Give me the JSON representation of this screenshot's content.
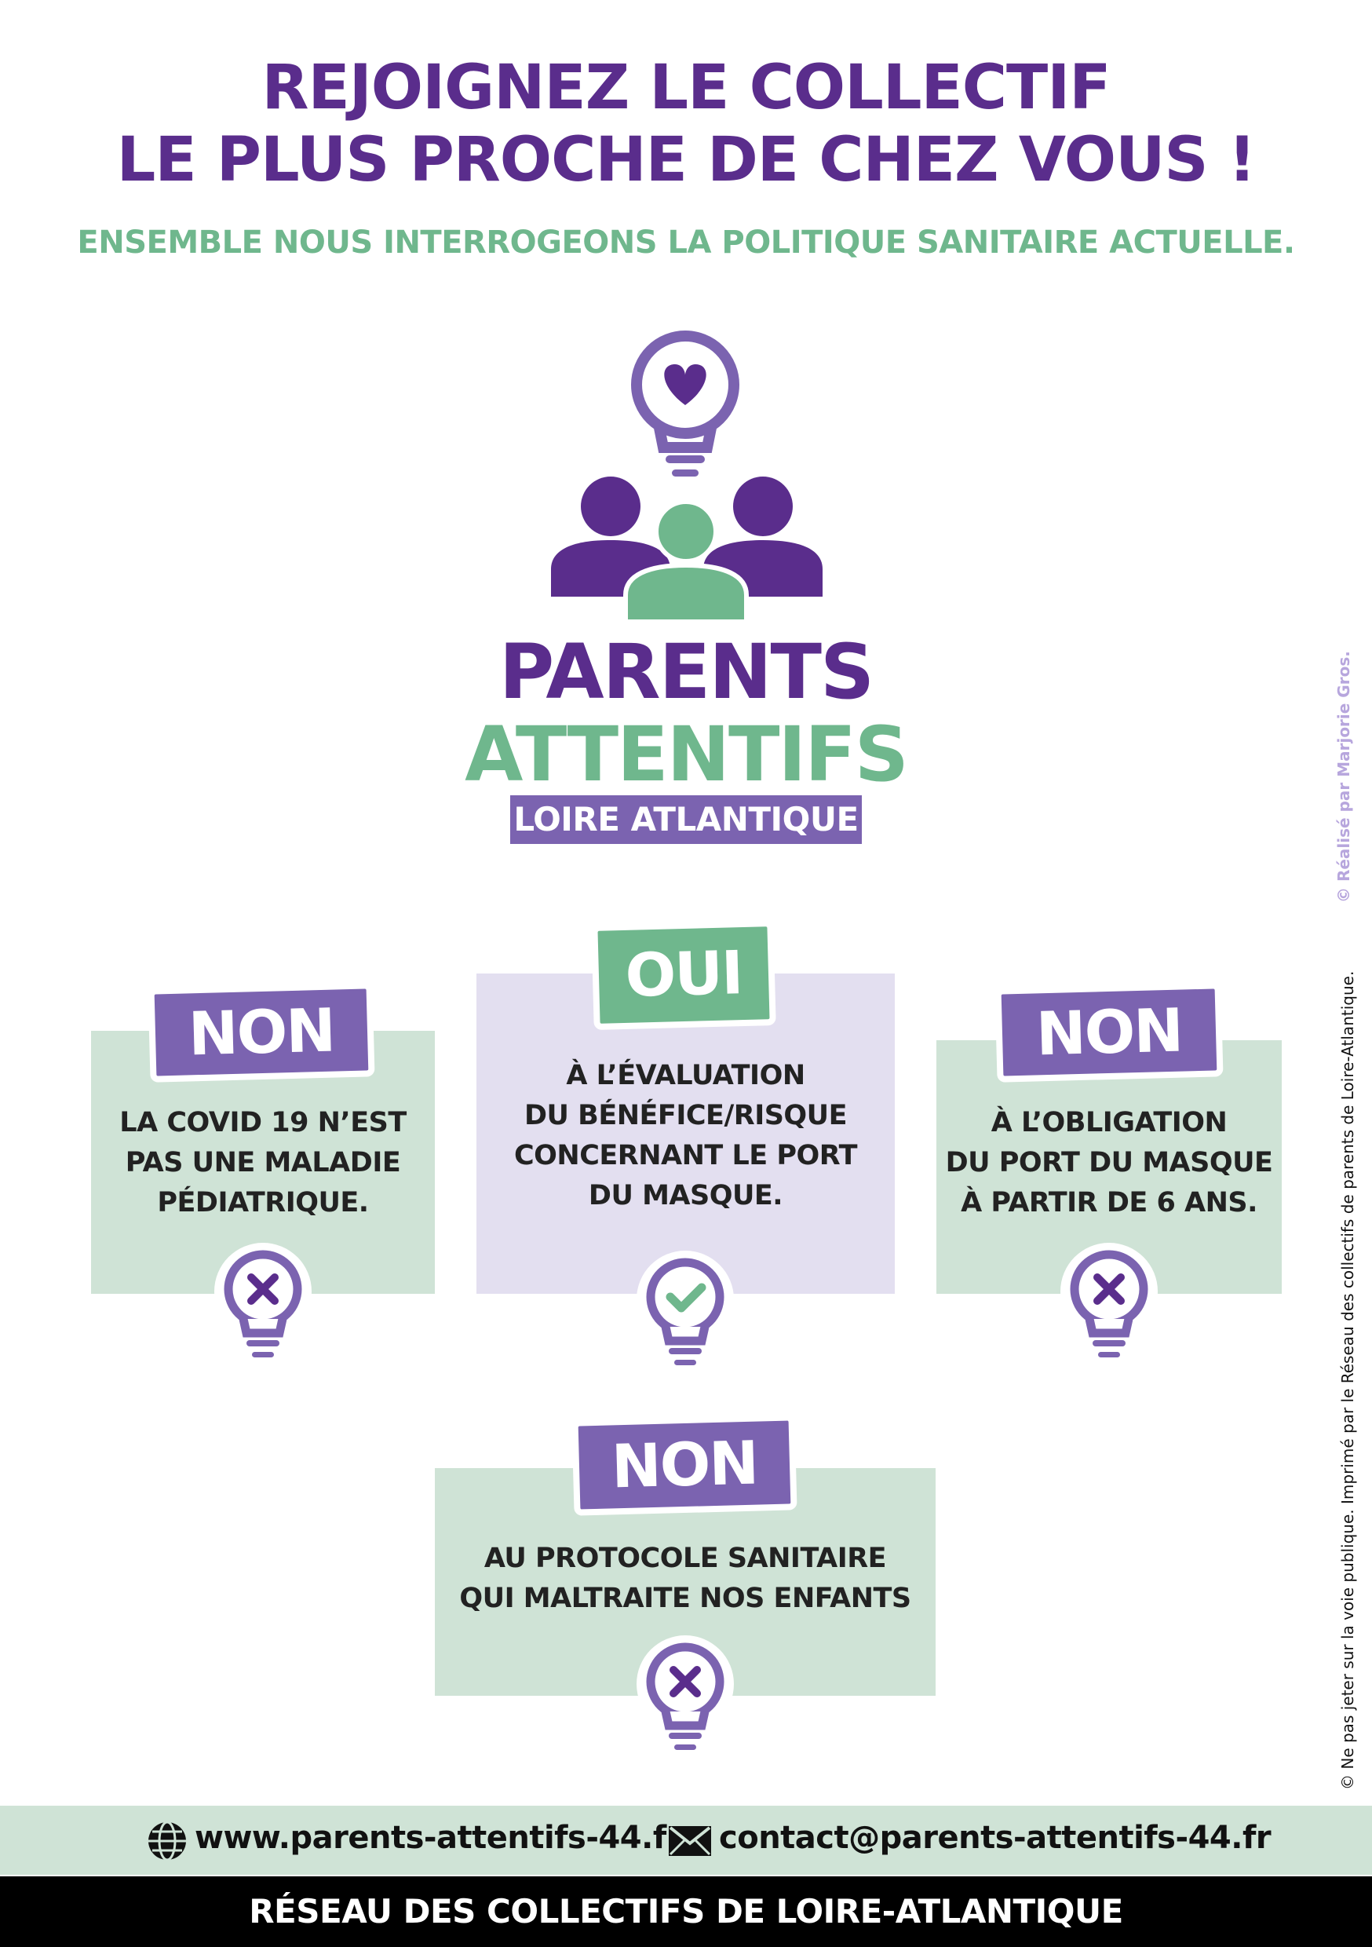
{
  "header": {
    "title_line1": "REJOIGNEZ LE COLLECTIF",
    "title_line2": "LE PLUS PROCHE DE CHEZ VOUS !",
    "subtitle": "ENSEMBLE NOUS INTERROGEONS LA POLITIQUE SANITAIRE ACTUELLE."
  },
  "logo": {
    "line1": "PARENTS",
    "line2": "ATTENTIFS",
    "line3": "LOIRE ATLANTIQUE"
  },
  "panels": [
    {
      "tag": "NON",
      "text": "LA COVID 19 N’EST\nPAS UNE MALADIE\nPÉDIATRIQUE.",
      "icon": "x-icon"
    },
    {
      "tag": "OUI",
      "text": "À L’ÉVALUATION\nDU BÉNÉFICE/RISQUE\nCONCERNANT LE PORT\nDU MASQUE.",
      "icon": "check-icon"
    },
    {
      "tag": "NON",
      "text": "À L’OBLIGATION\nDU PORT DU MASQUE\nÀ PARTIR DE 6 ANS.",
      "icon": "x-icon"
    },
    {
      "tag": "NON",
      "text": "AU PROTOCOLE SANITAIRE\nQUI MALTRAITE NOS ENFANTS",
      "icon": "x-icon"
    }
  ],
  "footer": {
    "website": "www.parents-attentifs-44.fr",
    "email": "contact@parents-attentifs-44.fr",
    "network": "RÉSEAU DES COLLECTIFS DE LOIRE-ATLANTIQUE"
  },
  "side": {
    "credit": "© Réalisé par Marjorie Gros.",
    "print_notice": "© Ne pas jeter sur la voie publique. Imprimé par le Réseau des collectifs de parents de Loire-Atlantique."
  },
  "colors": {
    "purple_dark": "#5a2d8c",
    "purple_mid": "#7b63b0",
    "green": "#6fb78d",
    "green_panel": "#cfe3d6",
    "lilac_panel": "#e3dff0"
  }
}
